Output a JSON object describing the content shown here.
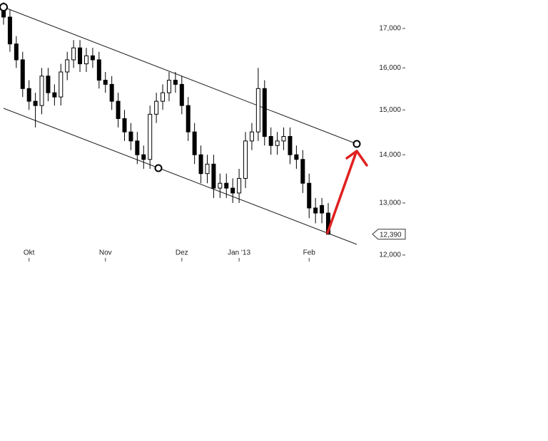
{
  "chart_data": {
    "type": "candlestick",
    "categories": [
      null,
      null,
      null,
      null,
      "Okt",
      null,
      null,
      null,
      null,
      null,
      null,
      null,
      null,
      null,
      null,
      null,
      "Nov",
      null,
      null,
      null,
      null,
      null,
      null,
      null,
      null,
      null,
      null,
      null,
      "Dez",
      null,
      null,
      null,
      null,
      null,
      null,
      null,
      null,
      "Jan '13",
      null,
      null,
      null,
      null,
      null,
      null,
      null,
      null,
      null,
      null,
      "Feb",
      null,
      null,
      null
    ],
    "open": [
      17500,
      17300,
      16600,
      16200,
      15500,
      15200,
      15100,
      15800,
      15400,
      15300,
      15900,
      16200,
      16500,
      16100,
      16300,
      16200,
      15700,
      15600,
      15200,
      14800,
      14500,
      14300,
      14000,
      13900,
      14900,
      15200,
      15400,
      15700,
      15600,
      15100,
      14500,
      14000,
      13600,
      13800,
      13300,
      13400,
      13300,
      13200,
      13500,
      14300,
      14500,
      15500,
      14400,
      14200,
      14300,
      14400,
      14000,
      13900,
      13400,
      12900,
      12950,
      12800
    ],
    "high": [
      17700,
      17500,
      16800,
      16400,
      15700,
      15400,
      16000,
      16000,
      15600,
      16100,
      16400,
      16700,
      16700,
      16500,
      16500,
      16400,
      15900,
      15800,
      15400,
      15000,
      14700,
      14500,
      14200,
      15100,
      15400,
      15600,
      15900,
      15900,
      15800,
      15300,
      14700,
      14200,
      14000,
      14000,
      13600,
      13600,
      13500,
      13700,
      14500,
      14700,
      16000,
      15700,
      14600,
      14500,
      14600,
      14600,
      14200,
      14100,
      13600,
      13100,
      13100,
      13000
    ],
    "low": [
      17100,
      16400,
      16000,
      15300,
      15000,
      14600,
      14900,
      15200,
      15100,
      15100,
      15700,
      16000,
      15900,
      15900,
      16000,
      15500,
      15400,
      15000,
      14600,
      14300,
      14100,
      13800,
      13700,
      13700,
      14700,
      15000,
      15200,
      15400,
      14900,
      14300,
      13800,
      13400,
      13400,
      13100,
      13100,
      13100,
      13000,
      13000,
      13300,
      14100,
      14300,
      14200,
      14000,
      14000,
      14100,
      13800,
      13700,
      13200,
      12700,
      12600,
      12600,
      12390
    ],
    "close": [
      17300,
      16600,
      16200,
      15500,
      15200,
      15100,
      15800,
      15400,
      15300,
      15900,
      16200,
      16500,
      16100,
      16300,
      16200,
      15700,
      15600,
      15200,
      14800,
      14500,
      14300,
      14000,
      13900,
      14900,
      15200,
      15400,
      15700,
      15600,
      15100,
      14500,
      14000,
      13600,
      13800,
      13300,
      13400,
      13300,
      13200,
      13500,
      14300,
      14500,
      15500,
      14400,
      14200,
      14300,
      14400,
      14000,
      13900,
      13400,
      12900,
      12800,
      12800,
      12390
    ],
    "last_label": {
      "value": 12390,
      "label": "12,390"
    },
    "log_scale": true,
    "ylim": [
      11843,
      17760
    ],
    "yticks": [
      {
        "value": 12000,
        "label": "12,000"
      },
      {
        "value": 13000,
        "label": "13,000"
      },
      {
        "value": 14000,
        "label": "14,000"
      },
      {
        "value": 15000,
        "label": "15,000"
      },
      {
        "value": 16000,
        "label": "16,000"
      },
      {
        "value": 17000,
        "label": "17,000"
      }
    ],
    "up_color": "#ffffff",
    "down_color": "#000000"
  }
}
